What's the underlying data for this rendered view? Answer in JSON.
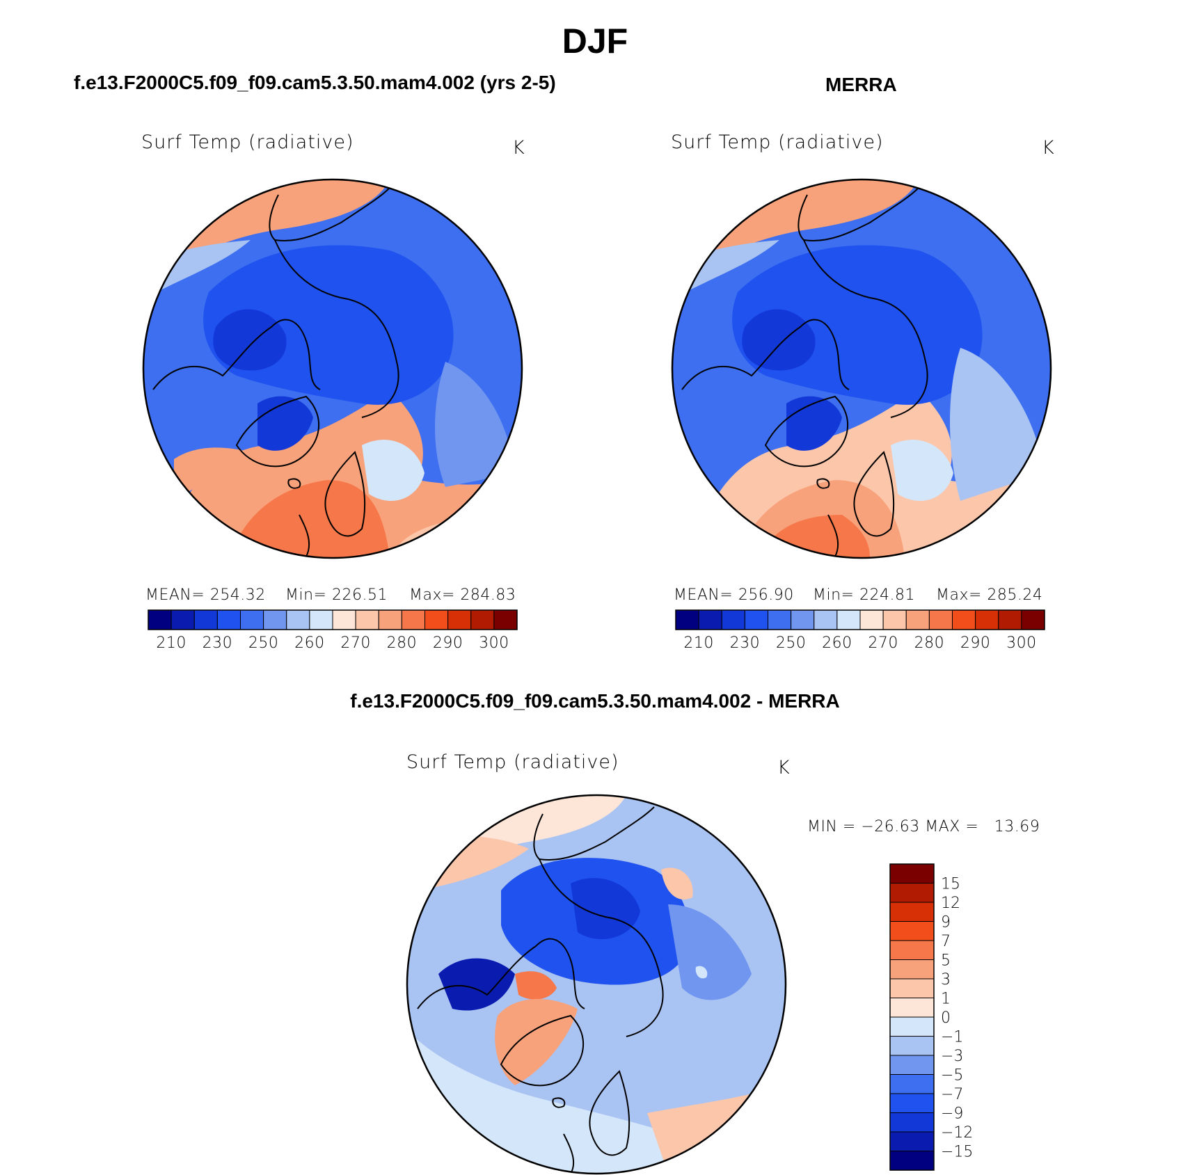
{
  "title": "DJF",
  "panels": [
    {
      "id": "model",
      "case_title": "f.e13.F2000C5.f09_f09.cam5.3.50.mam4.002 (yrs 2-5)",
      "variable": "Surf Temp (radiative)",
      "units": "K",
      "stats": {
        "mean": "MEAN= 254.32",
        "min": "Min= 226.51",
        "max": "Max= 284.83"
      }
    },
    {
      "id": "obs",
      "case_title": "MERRA",
      "variable": "Surf Temp (radiative)",
      "units": "K",
      "stats": {
        "mean": "MEAN= 256.90",
        "min": "Min= 224.81",
        "max": "Max= 285.24"
      }
    },
    {
      "id": "diff",
      "case_title": "f.e13.F2000C5.f09_f09.cam5.3.50.mam4.002 - MERRA",
      "variable": "Surf Temp (radiative)",
      "units": "K",
      "stats": {
        "minmax": "MIN = −26.63 MAX =   13.69"
      }
    }
  ],
  "chart_data": [
    {
      "type": "heatmap",
      "projection": "north polar stereographic",
      "title": "Surf Temp (radiative)",
      "units": "K",
      "mean": 254.32,
      "min": 226.51,
      "max": 284.83,
      "levels": [
        210,
        220,
        230,
        240,
        250,
        255,
        260,
        265,
        270,
        275,
        280,
        285,
        290,
        295,
        300
      ],
      "tick_labels": [
        "210",
        "230",
        "250",
        "260",
        "270",
        "280",
        "290",
        "300"
      ],
      "colors": [
        "#000080",
        "#0a1cb0",
        "#1338d8",
        "#1f52ee",
        "#3d6ff0",
        "#7196f0",
        "#a9c3f2",
        "#d4e6fa",
        "#fde6d8",
        "#fcc6ab",
        "#f8a27c",
        "#f6784a",
        "#f24e1c",
        "#d72f06",
        "#b01b02",
        "#7a0000"
      ]
    },
    {
      "type": "heatmap",
      "projection": "north polar stereographic",
      "title": "Surf Temp (radiative)",
      "units": "K",
      "mean": 256.9,
      "min": 224.81,
      "max": 285.24,
      "levels": [
        210,
        220,
        230,
        240,
        250,
        255,
        260,
        265,
        270,
        275,
        280,
        285,
        290,
        295,
        300
      ],
      "tick_labels": [
        "210",
        "230",
        "250",
        "260",
        "270",
        "280",
        "290",
        "300"
      ]
    },
    {
      "type": "heatmap",
      "projection": "north polar stereographic",
      "title": "Surf Temp (radiative)",
      "units": "K",
      "min": -26.63,
      "max": 13.69,
      "levels": [
        -15,
        -12,
        -9,
        -7,
        -5,
        -3,
        -1,
        0,
        1,
        3,
        5,
        7,
        9,
        12,
        15
      ],
      "tick_labels": [
        "15",
        "12",
        "9",
        "7",
        "5",
        "3",
        "1",
        "0",
        "−1",
        "−3",
        "−5",
        "−7",
        "−9",
        "−12",
        "−15"
      ],
      "colors_top_to_bottom": [
        "#7a0000",
        "#b01b02",
        "#d72f06",
        "#f24e1c",
        "#f6784a",
        "#f8a27c",
        "#fcc6ab",
        "#fde6d8",
        "#d4e6fa",
        "#a9c3f2",
        "#7196f0",
        "#3d6ff0",
        "#1f52ee",
        "#1338d8",
        "#0a1cb0",
        "#000080"
      ]
    }
  ]
}
